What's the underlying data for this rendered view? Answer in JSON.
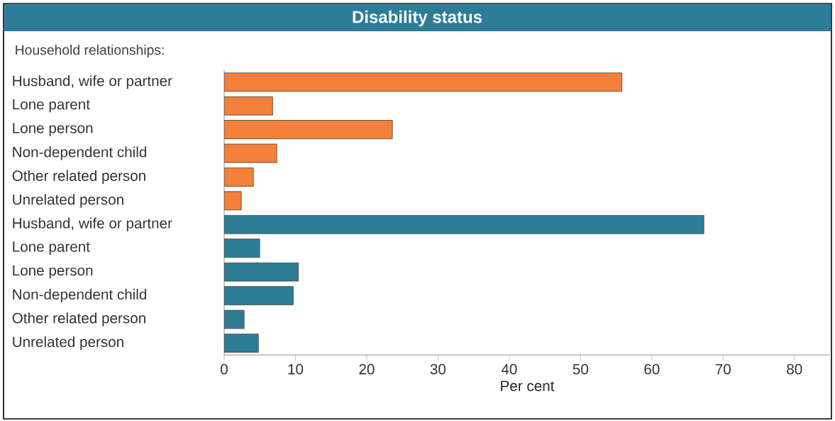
{
  "chart_data": {
    "type": "bar",
    "orientation": "horizontal",
    "title": "Disability status",
    "subtitle": "Household relationships:",
    "xlabel": "Per cent",
    "categories": [
      "Husband, wife or partner",
      "Lone parent",
      "Lone person",
      "Non-dependent child",
      "Other related person",
      "Unrelated person",
      "Husband, wife or partner",
      "Lone parent",
      "Lone person",
      "Non-dependent child",
      "Other related person",
      "Unrelated person"
    ],
    "values": [
      55.8,
      6.8,
      23.6,
      7.4,
      4.1,
      2.4,
      67.3,
      5.0,
      10.4,
      9.7,
      2.8,
      4.8
    ],
    "colors": [
      "#f4803a",
      "#f4803a",
      "#f4803a",
      "#f4803a",
      "#f4803a",
      "#f4803a",
      "#2e7d97",
      "#2e7d97",
      "#2e7d97",
      "#2e7d97",
      "#2e7d97",
      "#2e7d97"
    ],
    "xlim": [
      0,
      85
    ],
    "xticks": [
      0,
      10,
      20,
      30,
      40,
      50,
      60,
      70,
      80
    ]
  }
}
